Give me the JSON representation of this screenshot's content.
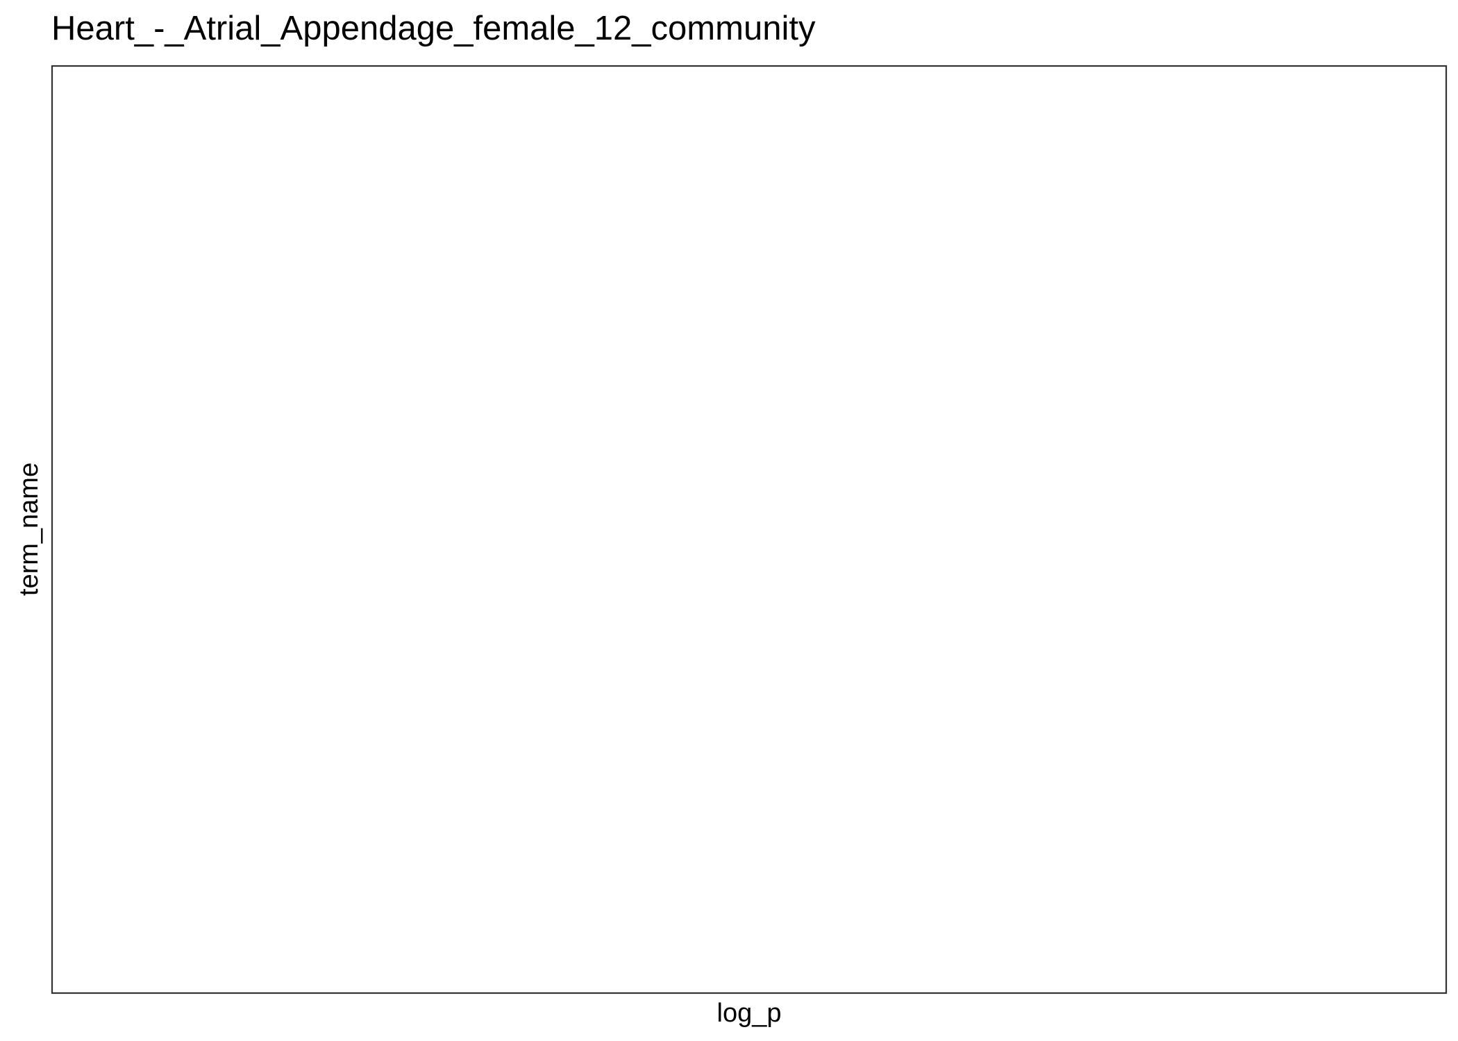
{
  "chart_data": {
    "type": "bar",
    "title": "Heart_-_Atrial_Appendage_female_12_community",
    "xlabel": "log_p",
    "ylabel": "term_name",
    "categories": [],
    "values": [],
    "grid": false,
    "legend": "none",
    "colors": {
      "background": "#ffffff",
      "panel_border": "#333333",
      "text": "#000000"
    }
  }
}
